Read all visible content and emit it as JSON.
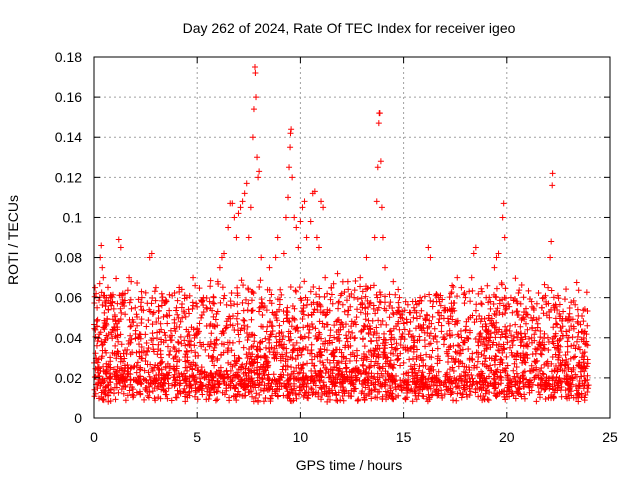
{
  "chart_data": {
    "type": "scatter",
    "title": "Day 262 of 2024, Rate Of TEC Index for receiver igeo",
    "xlabel": "GPS time / hours",
    "ylabel": "ROTI / TECUs",
    "xlim": [
      0,
      25
    ],
    "ylim": [
      0,
      0.18
    ],
    "xticks": [
      0,
      5,
      10,
      15,
      20,
      25
    ],
    "yticks": [
      0,
      0.02,
      0.04,
      0.06,
      0.08,
      0.1,
      0.12,
      0.14,
      0.16,
      0.18
    ],
    "xtick_labels": [
      "0",
      "5",
      "10",
      "15",
      "20",
      "25"
    ],
    "ytick_labels": [
      "0",
      "0.02",
      "0.04",
      "0.06",
      "0.08",
      "0.1",
      "0.12",
      "0.14",
      "0.16",
      "0.18"
    ],
    "grid": true,
    "legend": "none",
    "marker": "+",
    "color": "#ff0000",
    "x_data_range": [
      0,
      24
    ],
    "series": [
      {
        "points": [
          [
            0.05,
            0.065
          ],
          [
            0.1,
            0.062
          ],
          [
            0.15,
            0.055
          ],
          [
            0.3,
            0.08
          ],
          [
            0.35,
            0.086
          ],
          [
            0.4,
            0.075
          ],
          [
            0.45,
            0.07
          ],
          [
            0.6,
            0.06
          ],
          [
            0.9,
            0.058
          ],
          [
            1.2,
            0.089
          ],
          [
            1.3,
            0.085
          ],
          [
            1.5,
            0.062
          ],
          [
            1.7,
            0.07
          ],
          [
            1.8,
            0.068
          ],
          [
            2.0,
            0.055
          ],
          [
            2.3,
            0.063
          ],
          [
            2.7,
            0.08
          ],
          [
            2.8,
            0.082
          ],
          [
            3.0,
            0.065
          ],
          [
            3.5,
            0.058
          ],
          [
            4.0,
            0.055
          ],
          [
            4.5,
            0.06
          ],
          [
            4.8,
            0.07
          ],
          [
            4.9,
            0.066
          ],
          [
            5.3,
            0.06
          ],
          [
            5.6,
            0.058
          ],
          [
            5.8,
            0.06
          ],
          [
            6.0,
            0.068
          ],
          [
            6.1,
            0.075
          ],
          [
            6.2,
            0.08
          ],
          [
            6.3,
            0.082
          ],
          [
            6.5,
            0.095
          ],
          [
            6.6,
            0.107
          ],
          [
            6.7,
            0.107
          ],
          [
            6.8,
            0.1
          ],
          [
            6.9,
            0.09
          ],
          [
            7.0,
            0.102
          ],
          [
            7.1,
            0.105
          ],
          [
            7.2,
            0.108
          ],
          [
            7.3,
            0.112
          ],
          [
            7.4,
            0.117
          ],
          [
            7.5,
            0.09
          ],
          [
            7.6,
            0.105
          ],
          [
            7.7,
            0.14
          ],
          [
            7.75,
            0.154
          ],
          [
            7.8,
            0.175
          ],
          [
            7.82,
            0.172
          ],
          [
            7.85,
            0.16
          ],
          [
            7.9,
            0.13
          ],
          [
            7.95,
            0.12
          ],
          [
            8.0,
            0.123
          ],
          [
            8.1,
            0.08
          ],
          [
            8.5,
            0.075
          ],
          [
            8.8,
            0.08
          ],
          [
            8.9,
            0.09
          ],
          [
            9.2,
            0.082
          ],
          [
            9.3,
            0.1
          ],
          [
            9.4,
            0.11
          ],
          [
            9.45,
            0.125
          ],
          [
            9.5,
            0.135
          ],
          [
            9.52,
            0.142
          ],
          [
            9.55,
            0.144
          ],
          [
            9.6,
            0.12
          ],
          [
            9.7,
            0.1
          ],
          [
            9.8,
            0.095
          ],
          [
            9.9,
            0.085
          ],
          [
            10.0,
            0.098
          ],
          [
            10.1,
            0.105
          ],
          [
            10.2,
            0.108
          ],
          [
            10.3,
            0.09
          ],
          [
            10.5,
            0.098
          ],
          [
            10.6,
            0.112
          ],
          [
            10.7,
            0.113
          ],
          [
            10.8,
            0.09
          ],
          [
            10.9,
            0.085
          ],
          [
            11.0,
            0.108
          ],
          [
            11.1,
            0.105
          ],
          [
            11.2,
            0.07
          ],
          [
            11.5,
            0.065
          ],
          [
            11.8,
            0.072
          ],
          [
            12.0,
            0.062
          ],
          [
            12.3,
            0.068
          ],
          [
            12.6,
            0.06
          ],
          [
            12.9,
            0.07
          ],
          [
            13.2,
            0.08
          ],
          [
            13.4,
            0.065
          ],
          [
            13.6,
            0.09
          ],
          [
            13.7,
            0.108
          ],
          [
            13.75,
            0.125
          ],
          [
            13.8,
            0.147
          ],
          [
            13.82,
            0.152
          ],
          [
            13.85,
            0.152
          ],
          [
            13.9,
            0.128
          ],
          [
            13.95,
            0.105
          ],
          [
            14.0,
            0.09
          ],
          [
            14.1,
            0.075
          ],
          [
            14.5,
            0.068
          ],
          [
            14.8,
            0.06
          ],
          [
            15.1,
            0.058
          ],
          [
            15.5,
            0.055
          ],
          [
            15.8,
            0.06
          ],
          [
            16.2,
            0.085
          ],
          [
            16.3,
            0.08
          ],
          [
            16.6,
            0.058
          ],
          [
            17.0,
            0.055
          ],
          [
            17.3,
            0.062
          ],
          [
            17.6,
            0.07
          ],
          [
            17.8,
            0.065
          ],
          [
            18.0,
            0.06
          ],
          [
            18.3,
            0.07
          ],
          [
            18.4,
            0.082
          ],
          [
            18.5,
            0.085
          ],
          [
            18.8,
            0.063
          ],
          [
            19.0,
            0.06
          ],
          [
            19.2,
            0.058
          ],
          [
            19.4,
            0.075
          ],
          [
            19.5,
            0.08
          ],
          [
            19.6,
            0.082
          ],
          [
            19.8,
            0.1
          ],
          [
            19.85,
            0.107
          ],
          [
            19.9,
            0.09
          ],
          [
            20.2,
            0.06
          ],
          [
            20.5,
            0.04
          ],
          [
            20.8,
            0.05
          ],
          [
            21.0,
            0.044
          ],
          [
            21.3,
            0.05
          ],
          [
            21.5,
            0.047
          ],
          [
            21.8,
            0.06
          ],
          [
            22.0,
            0.065
          ],
          [
            22.1,
            0.08
          ],
          [
            22.15,
            0.088
          ],
          [
            22.2,
            0.116
          ],
          [
            22.22,
            0.122
          ],
          [
            22.3,
            0.055
          ],
          [
            22.6,
            0.045
          ],
          [
            23.0,
            0.04
          ],
          [
            23.4,
            0.038
          ],
          [
            23.9,
            0.046
          ]
        ]
      }
    ]
  }
}
